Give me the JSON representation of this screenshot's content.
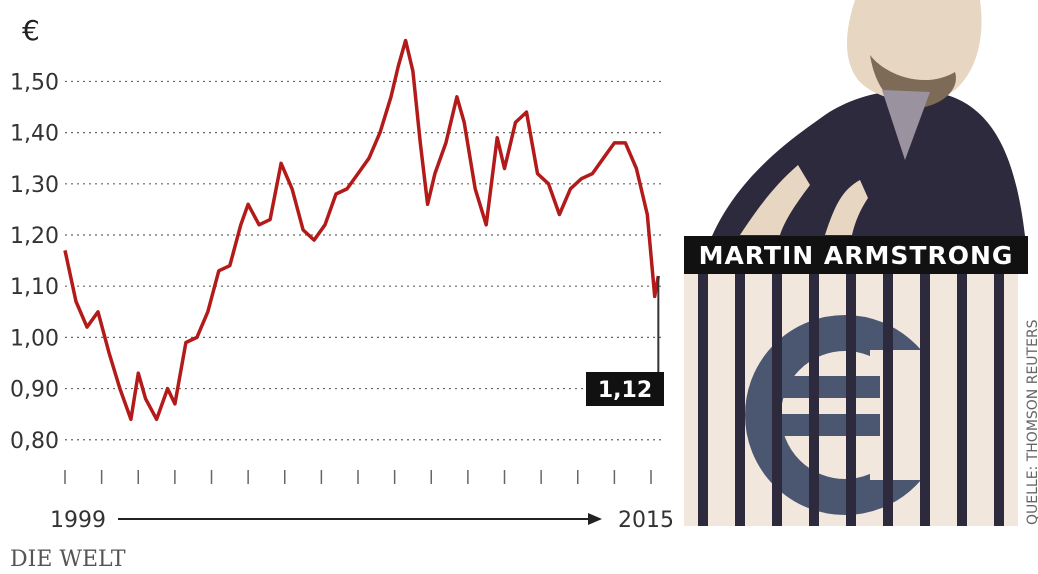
{
  "chart_data": {
    "type": "line",
    "unit_symbol": "€",
    "x_start_label": "1999",
    "x_end_label": "2015",
    "xlim": [
      1999,
      2015.3
    ],
    "ylim": [
      0.78,
      1.62
    ],
    "yticks": [
      0.8,
      0.9,
      1.0,
      1.1,
      1.2,
      1.3,
      1.4,
      1.5
    ],
    "ytick_labels": [
      "0,80",
      "0,90",
      "1,00",
      "1,10",
      "1,20",
      "1,30",
      "1,40",
      "1,50"
    ],
    "grid": "horizontal dotted",
    "line_color": "#b31b1b",
    "latest_value_label": "1,12",
    "series": [
      {
        "x": [
          1999.0,
          1999.3,
          1999.6,
          1999.9,
          2000.2,
          2000.5,
          2000.8,
          2001.0,
          2001.2,
          2001.5,
          2001.8,
          2002.0,
          2002.3,
          2002.6,
          2002.9,
          2003.2,
          2003.5,
          2003.8,
          2004.0,
          2004.3,
          2004.6,
          2004.9,
          2005.2,
          2005.5,
          2005.8,
          2006.1,
          2006.4,
          2006.7,
          2007.0,
          2007.3,
          2007.6,
          2007.9,
          2008.1,
          2008.3,
          2008.5,
          2008.7,
          2008.9,
          2009.1,
          2009.4,
          2009.7,
          2009.9,
          2010.2,
          2010.5,
          2010.8,
          2011.0,
          2011.3,
          2011.6,
          2011.9,
          2012.2,
          2012.5,
          2012.8,
          2013.1,
          2013.4,
          2013.7,
          2014.0,
          2014.3,
          2014.6,
          2014.9,
          2015.1,
          2015.2
        ],
        "y": [
          1.17,
          1.07,
          1.02,
          1.05,
          0.97,
          0.9,
          0.84,
          0.93,
          0.88,
          0.84,
          0.9,
          0.87,
          0.99,
          1.0,
          1.05,
          1.13,
          1.14,
          1.22,
          1.26,
          1.22,
          1.23,
          1.34,
          1.29,
          1.21,
          1.19,
          1.22,
          1.28,
          1.29,
          1.32,
          1.35,
          1.4,
          1.47,
          1.53,
          1.58,
          1.52,
          1.38,
          1.26,
          1.32,
          1.38,
          1.47,
          1.42,
          1.29,
          1.22,
          1.39,
          1.33,
          1.42,
          1.44,
          1.32,
          1.3,
          1.24,
          1.29,
          1.31,
          1.32,
          1.35,
          1.38,
          1.38,
          1.33,
          1.24,
          1.08,
          1.12
        ]
      }
    ]
  },
  "portrait": {
    "name": "MARTIN ARMSTRONG"
  },
  "source_credit": "QUELLE: THOMSON REUTERS",
  "logo": {
    "text": "DIE WELT"
  }
}
